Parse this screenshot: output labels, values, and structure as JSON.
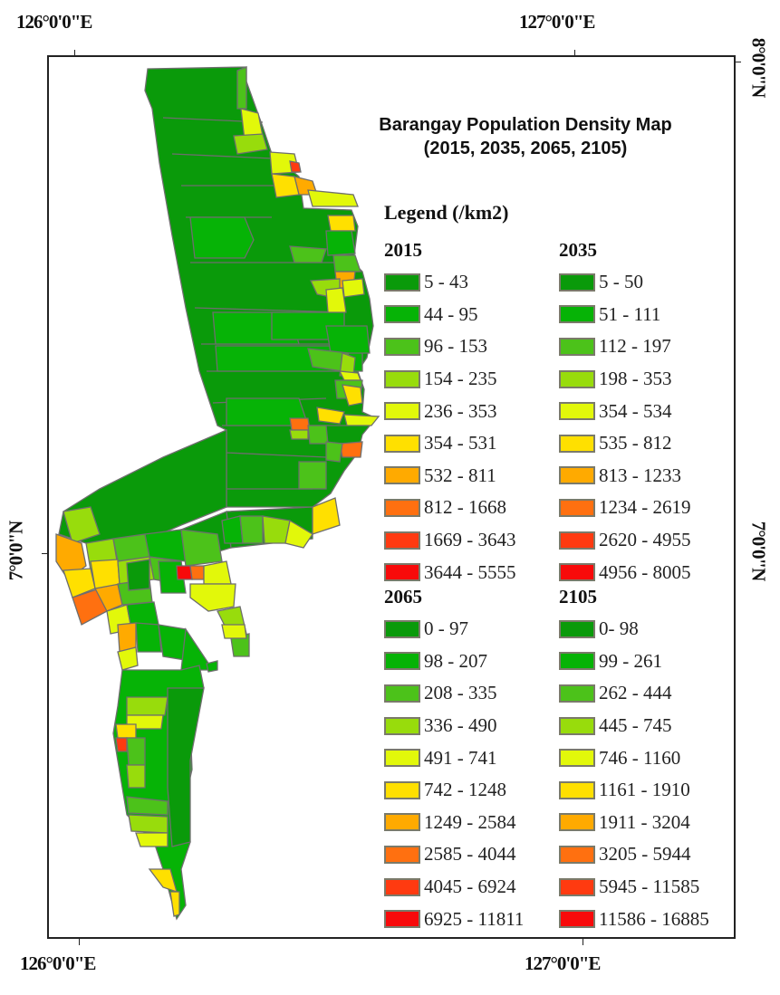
{
  "map": {
    "title_line1": "Barangay Population Density Map",
    "title_line2": "(2015, 2035, 2065, 2105)",
    "graticule": {
      "top_left": "126°0'0\"E",
      "top_right": "127°0'0\"E",
      "bottom_left": "126°0'0\"E",
      "bottom_right": "127°0'0\"E",
      "left_mid": "7°0'0\"N",
      "right_mid": "7°0'0\"N",
      "right_top": "8°0'0\"N"
    },
    "colors": {
      "c1": "#0a9a0a",
      "c2": "#06b306",
      "c3": "#4cc21a",
      "c4": "#98dc0c",
      "c5": "#e2f80a",
      "c6": "#ffe000",
      "c7": "#ffaa00",
      "c8": "#ff7010",
      "c9": "#ff3a10",
      "c10": "#f80a0a",
      "border": "#6e6e6e"
    }
  },
  "legend": {
    "title": "Legend (/km2)",
    "groups": [
      {
        "year": "2015",
        "items": [
          {
            "label": "5 - 43",
            "color": "#0a9a0a"
          },
          {
            "label": "44 - 95",
            "color": "#06b306"
          },
          {
            "label": "96 - 153",
            "color": "#4cc21a"
          },
          {
            "label": "154 - 235",
            "color": "#98dc0c"
          },
          {
            "label": "236 - 353",
            "color": "#e2f80a"
          },
          {
            "label": "354 - 531",
            "color": "#ffe000"
          },
          {
            "label": "532 - 811",
            "color": "#ffaa00"
          },
          {
            "label": "812 - 1668",
            "color": "#ff7010"
          },
          {
            "label": "1669 - 3643",
            "color": "#ff3a10"
          },
          {
            "label": "3644 - 5555",
            "color": "#f80a0a"
          }
        ]
      },
      {
        "year": "2035",
        "items": [
          {
            "label": "5 - 50",
            "color": "#0a9a0a"
          },
          {
            "label": "51 - 111",
            "color": "#06b306"
          },
          {
            "label": "112 - 197",
            "color": "#4cc21a"
          },
          {
            "label": "198 - 353",
            "color": "#98dc0c"
          },
          {
            "label": "354 - 534",
            "color": "#e2f80a"
          },
          {
            "label": "535 - 812",
            "color": "#ffe000"
          },
          {
            "label": "813 - 1233",
            "color": "#ffaa00"
          },
          {
            "label": "1234 - 2619",
            "color": "#ff7010"
          },
          {
            "label": "2620 - 4955",
            "color": "#ff3a10"
          },
          {
            "label": "4956 - 8005",
            "color": "#f80a0a"
          }
        ]
      },
      {
        "year": "2065",
        "items": [
          {
            "label": "0 - 97",
            "color": "#0a9a0a"
          },
          {
            "label": "98 - 207",
            "color": "#06b306"
          },
          {
            "label": "208 - 335",
            "color": "#4cc21a"
          },
          {
            "label": "336 - 490",
            "color": "#98dc0c"
          },
          {
            "label": "491 - 741",
            "color": "#e2f80a"
          },
          {
            "label": "742 - 1248",
            "color": "#ffe000"
          },
          {
            "label": "1249 - 2584",
            "color": "#ffaa00"
          },
          {
            "label": "2585 - 4044",
            "color": "#ff7010"
          },
          {
            "label": "4045 - 6924",
            "color": "#ff3a10"
          },
          {
            "label": "6925 - 11811",
            "color": "#f80a0a"
          }
        ]
      },
      {
        "year": "2105",
        "items": [
          {
            "label": "0- 98",
            "color": "#0a9a0a"
          },
          {
            "label": "99 - 261",
            "color": "#06b306"
          },
          {
            "label": "262 - 444",
            "color": "#4cc21a"
          },
          {
            "label": "445 - 745",
            "color": "#98dc0c"
          },
          {
            "label": "746 - 1160",
            "color": "#e2f80a"
          },
          {
            "label": "1161 - 1910",
            "color": "#ffe000"
          },
          {
            "label": "1911 - 3204",
            "color": "#ffaa00"
          },
          {
            "label": "3205 - 5944",
            "color": "#ff7010"
          },
          {
            "label": "5945 - 11585",
            "color": "#ff3a10"
          },
          {
            "label": "11586 - 16885",
            "color": "#f80a0a"
          }
        ]
      }
    ]
  }
}
